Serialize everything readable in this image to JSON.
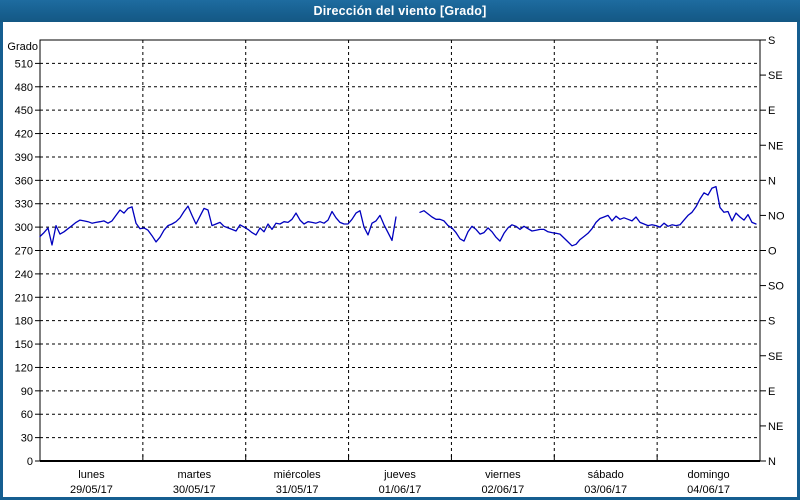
{
  "window": {
    "title": "Dirección del viento [Grado]"
  },
  "colors": {
    "frame_blue": "#155E90",
    "titlebar_text": "#FFFFFF",
    "line_blue": "#0000BE",
    "grid_color": "#000000",
    "label_color": "#000000",
    "background": "#FFFFFF"
  },
  "chart_data": {
    "type": "line",
    "title": "Dirección del viento [Grado]",
    "grid": {
      "horizontal": "dashed every 30 grados",
      "vertical": "dashed at day boundaries",
      "style": "dashed"
    },
    "y_left": {
      "label": "Grado",
      "min": 0,
      "max": 540,
      "tick_step": 30,
      "tick_labels": [
        "0",
        "30",
        "60",
        "90",
        "120",
        "150",
        "180",
        "210",
        "240",
        "270",
        "300",
        "330",
        "360",
        "390",
        "420",
        "450",
        "480",
        "510"
      ]
    },
    "y_right": {
      "tick_step": 45,
      "labels_bottom_to_top": [
        "N",
        "NE",
        "E",
        "SE",
        "S",
        "SO",
        "O",
        "NO",
        "N",
        "NE",
        "E",
        "SE",
        "S"
      ]
    },
    "x_days": [
      {
        "name": "lunes",
        "date": "29/05/17"
      },
      {
        "name": "martes",
        "date": "30/05/17"
      },
      {
        "name": "miércoles",
        "date": "31/05/17"
      },
      {
        "name": "jueves",
        "date": "01/06/17"
      },
      {
        "name": "viernes",
        "date": "02/06/17"
      },
      {
        "name": "sábado",
        "date": "03/06/17"
      },
      {
        "name": "domingo",
        "date": "04/06/17"
      }
    ],
    "series": [
      {
        "name": "Dirección del viento",
        "unit": "Grado",
        "color": "#0000BE",
        "note_gap": "null values = missing data segment during jueves 01/06/17",
        "values": [
          288,
          293,
          299,
          277,
          302,
          291,
          294,
          298,
          302,
          306,
          309,
          308,
          307,
          305,
          306,
          307,
          308,
          305,
          308,
          315,
          322,
          318,
          324,
          326,
          305,
          298,
          299,
          296,
          289,
          281,
          287,
          296,
          302,
          304,
          307,
          312,
          320,
          327,
          315,
          304,
          314,
          324,
          322,
          302,
          304,
          306,
          301,
          299,
          297,
          295,
          303,
          300,
          297,
          293,
          290,
          299,
          294,
          304,
          297,
          305,
          304,
          307,
          306,
          310,
          318,
          309,
          304,
          307,
          306,
          305,
          307,
          305,
          309,
          320,
          312,
          306,
          304,
          304,
          310,
          318,
          321,
          300,
          290,
          305,
          308,
          315,
          303,
          293,
          283,
          313,
          null,
          null,
          null,
          null,
          null,
          319,
          321,
          317,
          313,
          310,
          310,
          308,
          302,
          299,
          293,
          285,
          282,
          294,
          301,
          297,
          291,
          293,
          299,
          294,
          287,
          282,
          292,
          299,
          303,
          301,
          297,
          301,
          298,
          295,
          296,
          297,
          297,
          294,
          293,
          292,
          291,
          286,
          281,
          276,
          278,
          284,
          288,
          292,
          298,
          306,
          311,
          313,
          315,
          308,
          314,
          310,
          312,
          310,
          308,
          313,
          306,
          304,
          302,
          303,
          302,
          300,
          305,
          301,
          303,
          302,
          303,
          309,
          315,
          319,
          326,
          336,
          344,
          341,
          350,
          352,
          325,
          319,
          320,
          308,
          318,
          313,
          309,
          316,
          306,
          304
        ]
      }
    ]
  }
}
